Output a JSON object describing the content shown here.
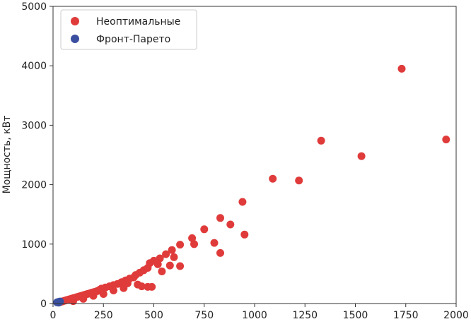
{
  "chart_data": {
    "type": "scatter",
    "title": "",
    "xlabel": "",
    "ylabel": "Мощность, кВт",
    "xlim": [
      0,
      2000
    ],
    "ylim": [
      0,
      5000
    ],
    "xticks": [
      "0",
      "250",
      "500",
      "750",
      "1000",
      "1250",
      "1500",
      "1750",
      "2000"
    ],
    "yticks": [
      "0",
      "1000",
      "2000",
      "3000",
      "4000",
      "5000"
    ],
    "grid": false,
    "legend_position": "top-left",
    "series": [
      {
        "name": "Неоптимальные",
        "color": "#e03b3b",
        "points": [
          [
            1730,
            3950
          ],
          [
            1950,
            2760
          ],
          [
            1330,
            2740
          ],
          [
            1530,
            2480
          ],
          [
            1090,
            2100
          ],
          [
            1220,
            2070
          ],
          [
            940,
            1710
          ],
          [
            830,
            1440
          ],
          [
            880,
            1330
          ],
          [
            750,
            1250
          ],
          [
            950,
            1160
          ],
          [
            690,
            1100
          ],
          [
            800,
            1020
          ],
          [
            700,
            1000
          ],
          [
            630,
            990
          ],
          [
            830,
            850
          ],
          [
            590,
            900
          ],
          [
            560,
            830
          ],
          [
            600,
            780
          ],
          [
            530,
            760
          ],
          [
            500,
            720
          ],
          [
            480,
            680
          ],
          [
            520,
            660
          ],
          [
            580,
            640
          ],
          [
            630,
            630
          ],
          [
            470,
            600
          ],
          [
            450,
            560
          ],
          [
            540,
            540
          ],
          [
            430,
            520
          ],
          [
            410,
            480
          ],
          [
            400,
            440
          ],
          [
            380,
            420
          ],
          [
            360,
            390
          ],
          [
            340,
            360
          ],
          [
            370,
            340
          ],
          [
            420,
            320
          ],
          [
            320,
            330
          ],
          [
            300,
            310
          ],
          [
            280,
            290
          ],
          [
            440,
            290
          ],
          [
            470,
            280
          ],
          [
            490,
            280
          ],
          [
            260,
            270
          ],
          [
            240,
            250
          ],
          [
            350,
            260
          ],
          [
            230,
            230
          ],
          [
            220,
            210
          ],
          [
            300,
            220
          ],
          [
            210,
            200
          ],
          [
            200,
            190
          ],
          [
            190,
            180
          ],
          [
            180,
            170
          ],
          [
            170,
            160
          ],
          [
            250,
            160
          ],
          [
            160,
            150
          ],
          [
            150,
            140
          ],
          [
            140,
            130
          ],
          [
            200,
            130
          ],
          [
            130,
            120
          ],
          [
            120,
            110
          ],
          [
            110,
            100
          ],
          [
            100,
            90
          ],
          [
            90,
            80
          ],
          [
            80,
            70
          ],
          [
            150,
            80
          ],
          [
            70,
            60
          ],
          [
            60,
            50
          ],
          [
            50,
            40
          ],
          [
            45,
            35
          ],
          [
            40,
            30
          ],
          [
            100,
            40
          ]
        ]
      },
      {
        "name": "Фронт-Парето",
        "color": "#3b4fa0",
        "points": [
          [
            20,
            20
          ],
          [
            25,
            25
          ],
          [
            30,
            30
          ],
          [
            35,
            35
          ],
          [
            28,
            15
          ]
        ]
      }
    ]
  },
  "colors": {
    "axis": "#333333",
    "background": "#ffffff"
  }
}
